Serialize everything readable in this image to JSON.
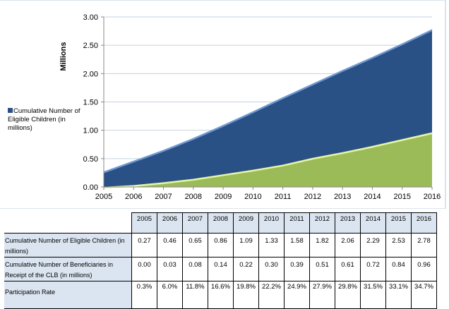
{
  "chart_data": {
    "type": "area",
    "title": "",
    "xlabel": "",
    "ylabel": "Millions",
    "ylim": [
      0,
      3.0
    ],
    "yticks": [
      "0.00",
      "0.50",
      "1.00",
      "1.50",
      "2.00",
      "2.50",
      "3.00"
    ],
    "ytick_values": [
      0,
      0.5,
      1.0,
      1.5,
      2.0,
      2.5,
      3.0
    ],
    "categories": [
      "2005",
      "2006",
      "2007",
      "2008",
      "2009",
      "2010",
      "2011",
      "2012",
      "2013",
      "2014",
      "2015",
      "2016"
    ],
    "grid": true,
    "legend_position": "left",
    "series": [
      {
        "name": "Cumulative Number of Eligible Children (in millions)",
        "color": "#2a5186",
        "values": [
          0.27,
          0.46,
          0.65,
          0.86,
          1.09,
          1.33,
          1.58,
          1.82,
          2.06,
          2.29,
          2.53,
          2.78
        ],
        "in_legend": true
      },
      {
        "name": "Cumulative Number of Beneficiaries in Receipt of the CLB (in millions)",
        "color": "#9bbb59",
        "values": [
          0.0,
          0.03,
          0.08,
          0.14,
          0.22,
          0.3,
          0.39,
          0.51,
          0.61,
          0.72,
          0.84,
          0.96
        ],
        "in_legend": false
      }
    ]
  },
  "legend": {
    "label": "Cumulative Number of Eligible Children (in millions)"
  },
  "table": {
    "years": [
      "2005",
      "2006",
      "2007",
      "2008",
      "2009",
      "2010",
      "2011",
      "2012",
      "2013",
      "2014",
      "2015",
      "2016"
    ],
    "rows": [
      {
        "label": "Cumulative Number of Eligible Children (in millions)",
        "values": [
          "0.27",
          "0.46",
          "0.65",
          "0.86",
          "1.09",
          "1.33",
          "1.58",
          "1.82",
          "2.06",
          "2.29",
          "2.53",
          "2.78"
        ]
      },
      {
        "label": "Cumulative Number of Beneficiaries in Receipt of the CLB (in millions)",
        "values": [
          "0.00",
          "0.03",
          "0.08",
          "0.14",
          "0.22",
          "0.30",
          "0.39",
          "0.51",
          "0.61",
          "0.72",
          "0.84",
          "0.96"
        ]
      },
      {
        "label": "Participation Rate",
        "values": [
          "0.3%",
          "6.0%",
          "11.8%",
          "16.6%",
          "19.8%",
          "22.2%",
          "24.9%",
          "27.9%",
          "29.8%",
          "31.5%",
          "33.1%",
          "34.7%"
        ]
      }
    ]
  }
}
